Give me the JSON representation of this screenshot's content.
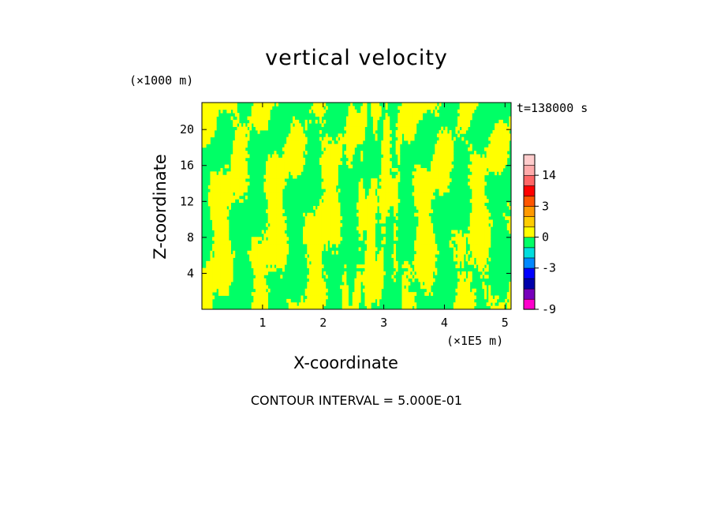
{
  "chart_data": {
    "type": "heatmap",
    "title": "vertical velocity",
    "xlabel": "X-coordinate",
    "ylabel": "Z-coordinate",
    "x_units": "(×1E5 m)",
    "z_units": "(×1000 m)",
    "time_label": "t=138000 s",
    "contour_interval_label": "CONTOUR INTERVAL = 5.000E-01",
    "xlim": [
      0,
      5.1
    ],
    "ylim": [
      0,
      23
    ],
    "xticks": [
      1,
      2,
      3,
      4,
      5
    ],
    "xtick_labels": [
      "1",
      "2",
      "3",
      "4",
      "5"
    ],
    "yticks": [
      4,
      8,
      12,
      16,
      20
    ],
    "ytick_labels": [
      "4",
      "8",
      "12",
      "16",
      "20"
    ],
    "field_colors": {
      "positive": "#ffff00",
      "negative": "#00ff66"
    },
    "colorbar": {
      "bins": [
        {
          "from": -9,
          "to": -8,
          "color": "#ff00cc"
        },
        {
          "from": -8,
          "to": -6,
          "color": "#7700bb"
        },
        {
          "from": -6,
          "to": -4.5,
          "color": "#0000aa"
        },
        {
          "from": -4.5,
          "to": -3,
          "color": "#0000ff"
        },
        {
          "from": -3,
          "to": -1.5,
          "color": "#0088ff"
        },
        {
          "from": -1.5,
          "to": -0.5,
          "color": "#00dddd"
        },
        {
          "from": -0.5,
          "to": 0,
          "color": "#00ff66"
        },
        {
          "from": 0,
          "to": 1,
          "color": "#ffff00"
        },
        {
          "from": 1,
          "to": 2,
          "color": "#ffcc00"
        },
        {
          "from": 2,
          "to": 3,
          "color": "#ff9900"
        },
        {
          "from": 3,
          "to": 4,
          "color": "#ff5500"
        },
        {
          "from": 4,
          "to": 7,
          "color": "#ff0000"
        },
        {
          "from": 7,
          "to": 14,
          "color": "#ff6666"
        },
        {
          "from": 14,
          "to": 18,
          "color": "#ffaaaa"
        },
        {
          "from": 18,
          "to": 20,
          "color": "#ffcccc"
        }
      ],
      "tick_labels": [
        {
          "value": -9,
          "label": "-9"
        },
        {
          "value": -3,
          "label": "-3"
        },
        {
          "value": 0,
          "label": "0"
        },
        {
          "value": 3,
          "label": "3"
        },
        {
          "value": 14,
          "label": "14"
        }
      ]
    }
  }
}
